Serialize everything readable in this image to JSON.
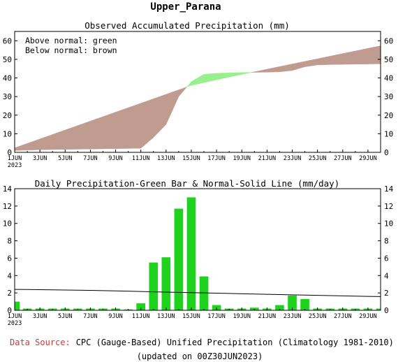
{
  "page": {
    "title": "Upper_Parana",
    "footer": {
      "source_label": "Data Source:",
      "source_text": "CPC (Gauge-Based) Unified Precipitation (Climatology 1981-2010)",
      "updated": "(updated on 00Z30JUN2023)"
    }
  },
  "chart_data": [
    {
      "type": "area",
      "title": "Observed Accumulated Precipitation (mm)",
      "legend": [
        "Above normal: green",
        "Below normal: brown"
      ],
      "legend_position": "top-left",
      "colors": {
        "above": "#98f08c",
        "below": "#c09c90"
      },
      "x": [
        "1JUN",
        "2JUN",
        "3JUN",
        "4JUN",
        "5JUN",
        "6JUN",
        "7JUN",
        "8JUN",
        "9JUN",
        "10JUN",
        "11JUN",
        "12JUN",
        "13JUN",
        "14JUN",
        "15JUN",
        "16JUN",
        "17JUN",
        "18JUN",
        "19JUN",
        "20JUN",
        "21JUN",
        "22JUN",
        "23JUN",
        "24JUN",
        "25JUN",
        "26JUN",
        "27JUN",
        "28JUN",
        "29JUN",
        "30JUN"
      ],
      "xtick_labels": [
        "1JUN",
        "3JUN",
        "5JUN",
        "7JUN",
        "9JUN",
        "11JUN",
        "13JUN",
        "15JUN",
        "17JUN",
        "19JUN",
        "21JUN",
        "23JUN",
        "25JUN",
        "27JUN",
        "29JUN"
      ],
      "xtick_year": "2023",
      "ylim": [
        0,
        65
      ],
      "yticks": [
        0,
        10,
        20,
        30,
        40,
        50,
        60
      ],
      "series": [
        {
          "values": [
            1.0,
            1.2,
            1.4,
            1.5,
            1.6,
            1.7,
            1.8,
            1.9,
            2.0,
            2.1,
            2.2,
            8.0,
            15.0,
            30.0,
            38.0,
            42.0,
            42.5,
            42.7,
            42.9,
            43.0,
            43.1,
            43.3,
            44.0,
            46.0,
            47.0,
            47.2,
            47.3,
            47.4,
            47.5,
            47.6
          ]
        },
        {
          "values": [
            2.4,
            4.8,
            7.2,
            9.6,
            12.0,
            14.4,
            16.8,
            19.2,
            21.6,
            24.0,
            26.4,
            28.8,
            31.2,
            33.6,
            36.0,
            37.5,
            39.0,
            40.5,
            41.9,
            43.3,
            44.7,
            46.1,
            47.5,
            48.9,
            50.3,
            51.7,
            53.1,
            54.5,
            55.9,
            57.3
          ]
        }
      ]
    },
    {
      "type": "bar",
      "title": "Daily Precipitation-Green Bar & Normal-Solid Line (mm/day)",
      "colors": {
        "bar": "#1ed21e",
        "line": "#000000"
      },
      "categories": [
        "1JUN",
        "2JUN",
        "3JUN",
        "4JUN",
        "5JUN",
        "6JUN",
        "7JUN",
        "8JUN",
        "9JUN",
        "10JUN",
        "11JUN",
        "12JUN",
        "13JUN",
        "14JUN",
        "15JUN",
        "16JUN",
        "17JUN",
        "18JUN",
        "19JUN",
        "20JUN",
        "21JUN",
        "22JUN",
        "23JUN",
        "24JUN",
        "25JUN",
        "26JUN",
        "27JUN",
        "28JUN",
        "29JUN",
        "30JUN"
      ],
      "xtick_labels": [
        "1JUN",
        "3JUN",
        "5JUN",
        "7JUN",
        "9JUN",
        "11JUN",
        "13JUN",
        "15JUN",
        "17JUN",
        "19JUN",
        "21JUN",
        "23JUN",
        "25JUN",
        "27JUN",
        "29JUN"
      ],
      "xtick_year": "2023",
      "ylim": [
        0,
        14
      ],
      "yticks": [
        0,
        2,
        4,
        6,
        8,
        10,
        12,
        14
      ],
      "series": [
        {
          "type": "bar",
          "values": [
            1.0,
            0.2,
            0.2,
            0.2,
            0.2,
            0.2,
            0.2,
            0.2,
            0.2,
            0.1,
            0.8,
            5.5,
            6.1,
            11.7,
            13.0,
            3.9,
            0.6,
            0.2,
            0.2,
            0.3,
            0.2,
            0.6,
            1.7,
            1.3,
            0.2,
            0.2,
            0.2,
            0.2,
            0.2,
            0.2
          ]
        },
        {
          "type": "line",
          "values": [
            2.4,
            2.39,
            2.37,
            2.35,
            2.33,
            2.31,
            2.29,
            2.26,
            2.23,
            2.2,
            2.16,
            2.12,
            2.09,
            2.06,
            2.03,
            2.0,
            1.97,
            1.94,
            1.9,
            1.87,
            1.84,
            1.81,
            1.78,
            1.75,
            1.72,
            1.69,
            1.66,
            1.63,
            1.6,
            1.58
          ]
        }
      ]
    }
  ]
}
